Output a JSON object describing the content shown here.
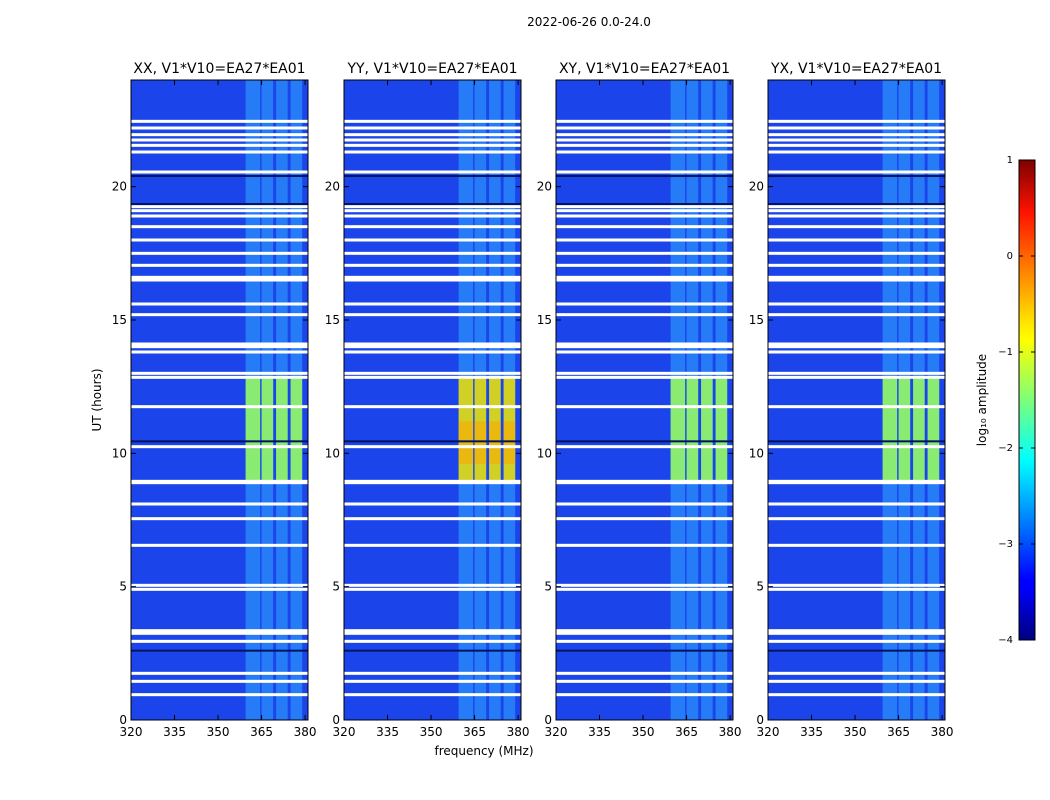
{
  "suptitle": "2022-06-26 0.0-24.0",
  "chart_data": {
    "type": "heatmap",
    "panels": [
      {
        "title": "XX, V1*V10=EA27*EA01",
        "rfi_strength": 0.55
      },
      {
        "title": "YY, V1*V10=EA27*EA01",
        "rfi_strength": 0.95
      },
      {
        "title": "XY, V1*V10=EA27*EA01",
        "rfi_strength": 0.62
      },
      {
        "title": "YX, V1*V10=EA27*EA01",
        "rfi_strength": 0.62
      }
    ],
    "xlabel": "frequency (MHz)",
    "ylabel": "UT (hours)",
    "xlim": [
      320,
      381
    ],
    "ylim": [
      0,
      24
    ],
    "xticks": [
      320,
      335,
      350,
      365,
      380
    ],
    "yticks": [
      0,
      5,
      10,
      15,
      20
    ],
    "strong_rfi_band_hours": [
      9.0,
      12.8
    ],
    "rfi_channels_mhz": [
      [
        359.5,
        364.5
      ],
      [
        365.0,
        369.0
      ],
      [
        370.0,
        374.0
      ],
      [
        375.0,
        379.0
      ]
    ],
    "flagged_hours": [
      0.95,
      1.45,
      1.75,
      2.95,
      3.25,
      3.35,
      4.9,
      5.05,
      6.55,
      7.55,
      8.1,
      8.9,
      8.95,
      10.25,
      11.75,
      12.85,
      13.0,
      13.8,
      14.0,
      14.1,
      15.2,
      15.6,
      16.5,
      16.6,
      17.05,
      17.5,
      18.0,
      18.5,
      18.9,
      19.1,
      19.25,
      20.55,
      21.3,
      21.55,
      21.75,
      21.95,
      22.2,
      22.45
    ],
    "colorbar": {
      "label": "log₁₀ amplitude",
      "ticks": [
        1,
        0,
        -1,
        -2,
        -3,
        -4
      ],
      "range": [
        -4,
        1
      ],
      "colormap": "jet"
    }
  }
}
